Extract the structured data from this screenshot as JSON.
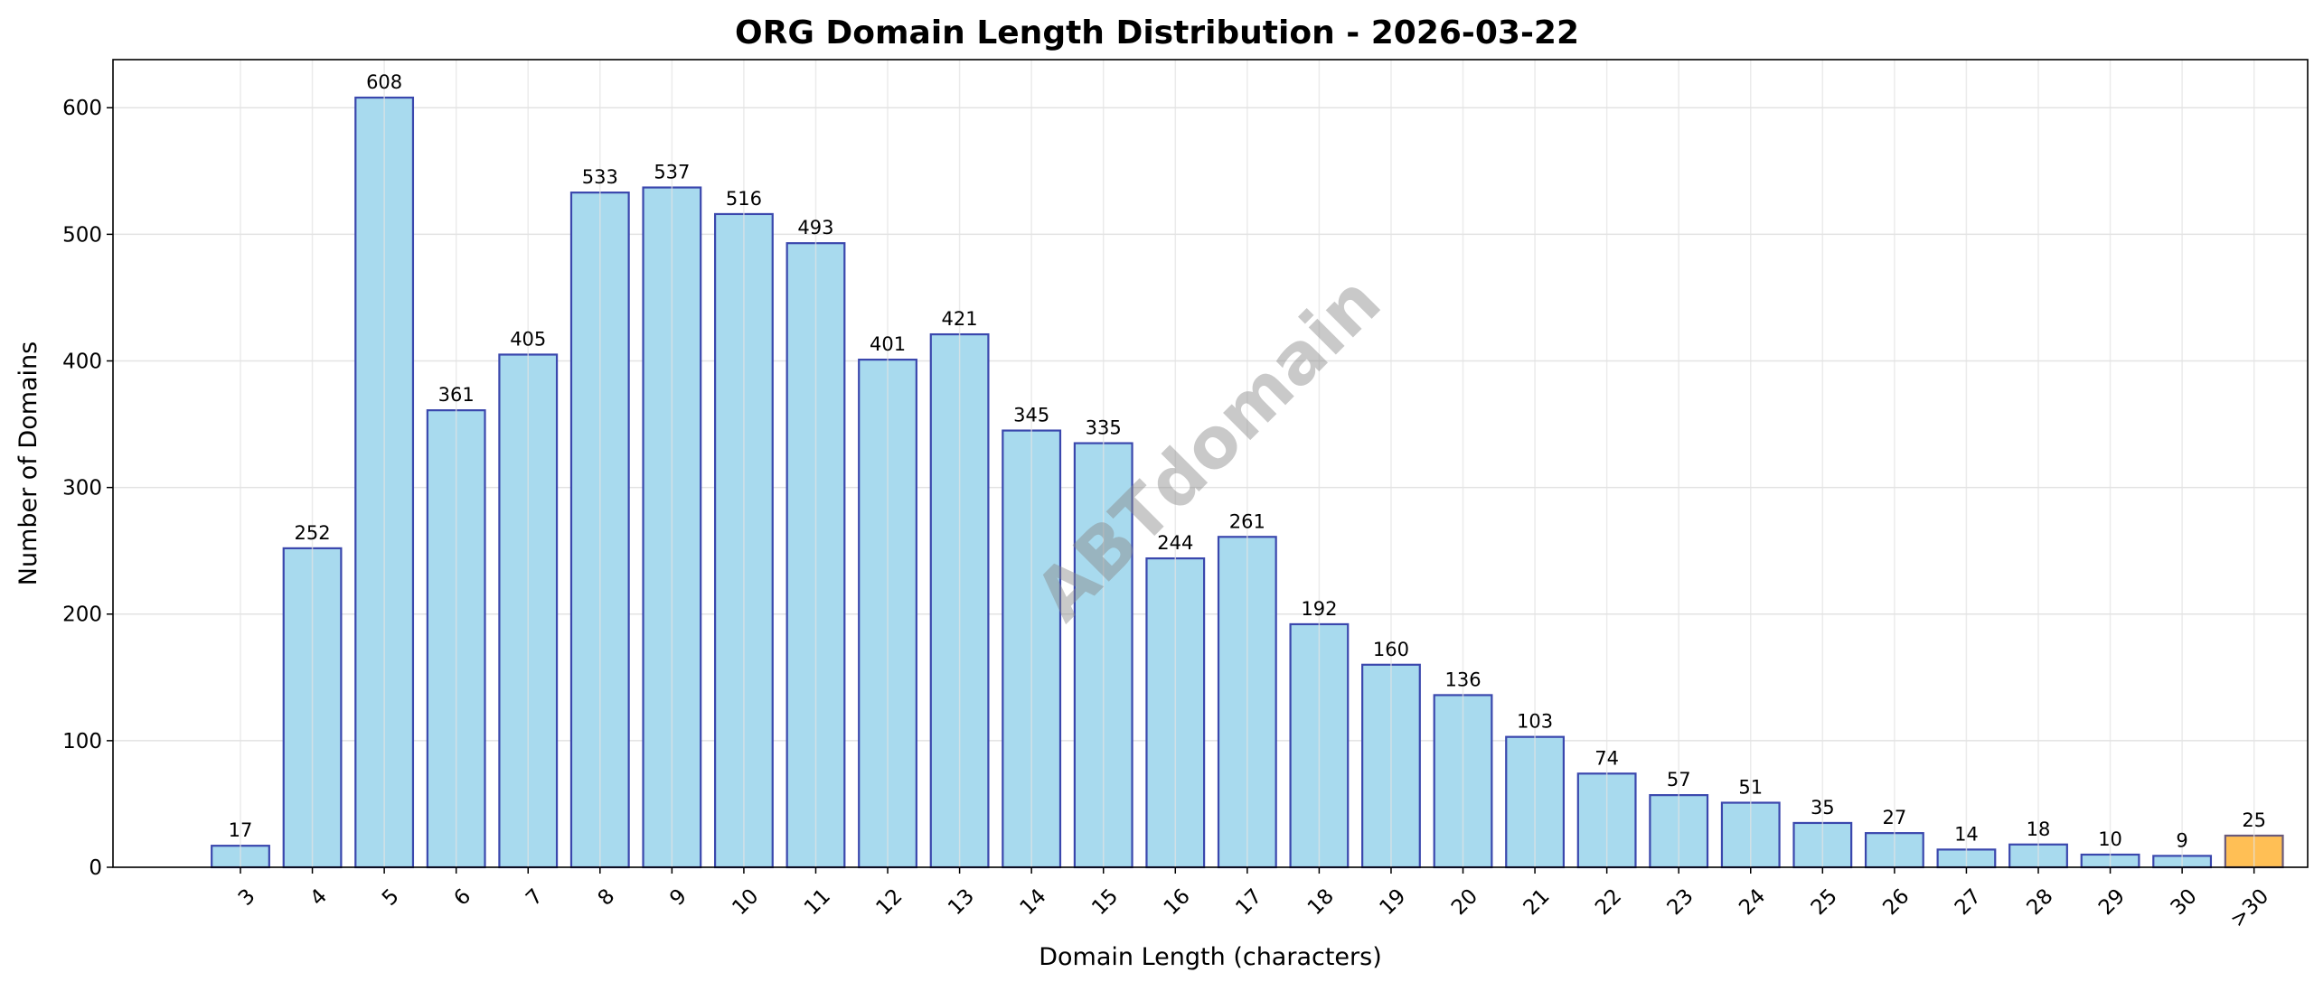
{
  "chart_data": {
    "type": "bar",
    "title": "ORG Domain Length Distribution - 2026-03-22",
    "xlabel": "Domain Length (characters)",
    "ylabel": "Number of Domains",
    "categories": [
      "3",
      "4",
      "5",
      "6",
      "7",
      "8",
      "9",
      "10",
      "11",
      "12",
      "13",
      "14",
      "15",
      "16",
      "17",
      "18",
      "19",
      "20",
      "21",
      "22",
      "23",
      "24",
      "25",
      "26",
      "27",
      "28",
      "29",
      "30",
      ">30"
    ],
    "values": [
      17,
      252,
      608,
      361,
      405,
      533,
      537,
      516,
      493,
      401,
      421,
      345,
      335,
      244,
      261,
      192,
      160,
      136,
      103,
      74,
      57,
      51,
      35,
      27,
      14,
      18,
      10,
      9,
      25
    ],
    "ylim": [
      0,
      638
    ],
    "yticks": [
      0,
      100,
      200,
      300,
      400,
      500,
      600
    ],
    "grid": true,
    "legend": "none",
    "watermark": "ABTdomain",
    "colors": {
      "bar_fill": "#a8daee",
      "bar_edge": "#3a47ad",
      "highlight_fill": "#ffbf55",
      "highlight_edge": "#6a5a7a",
      "grid": "#e3e3e3"
    }
  }
}
